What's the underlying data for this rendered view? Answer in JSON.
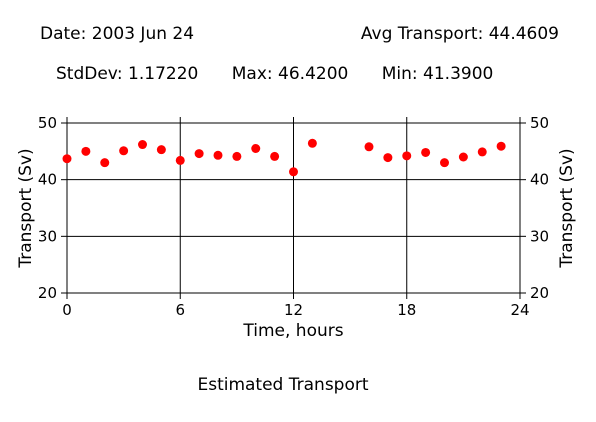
{
  "header": {
    "date_label": "Date: 2003 Jun 24",
    "avg_label": "Avg Transport: 44.4609",
    "stddev_label": "StdDev: 1.17220",
    "max_label": "Max: 46.4200",
    "min_label": "Min: 41.3900"
  },
  "caption": "Estimated Transport",
  "chart_data": {
    "type": "scatter",
    "xlabel": "Time, hours",
    "ylabel": "Transport (Sv)",
    "xlim": [
      0,
      24
    ],
    "ylim": [
      20,
      50
    ],
    "xticks": [
      0,
      6,
      12,
      18,
      24
    ],
    "yticks": [
      20,
      30,
      40,
      50
    ],
    "grid": true,
    "marker_color": "#ff0000",
    "x": [
      0,
      1,
      2,
      3,
      4,
      5,
      6,
      7,
      8,
      9,
      10,
      11,
      12,
      13,
      16,
      17,
      18,
      19,
      20,
      21,
      22,
      23
    ],
    "y": [
      43.7,
      45.0,
      43.0,
      45.1,
      46.2,
      45.3,
      43.4,
      44.6,
      44.3,
      44.1,
      45.5,
      44.1,
      41.39,
      46.42,
      45.8,
      43.9,
      44.2,
      44.8,
      43.0,
      44.0,
      44.9,
      45.9
    ]
  }
}
